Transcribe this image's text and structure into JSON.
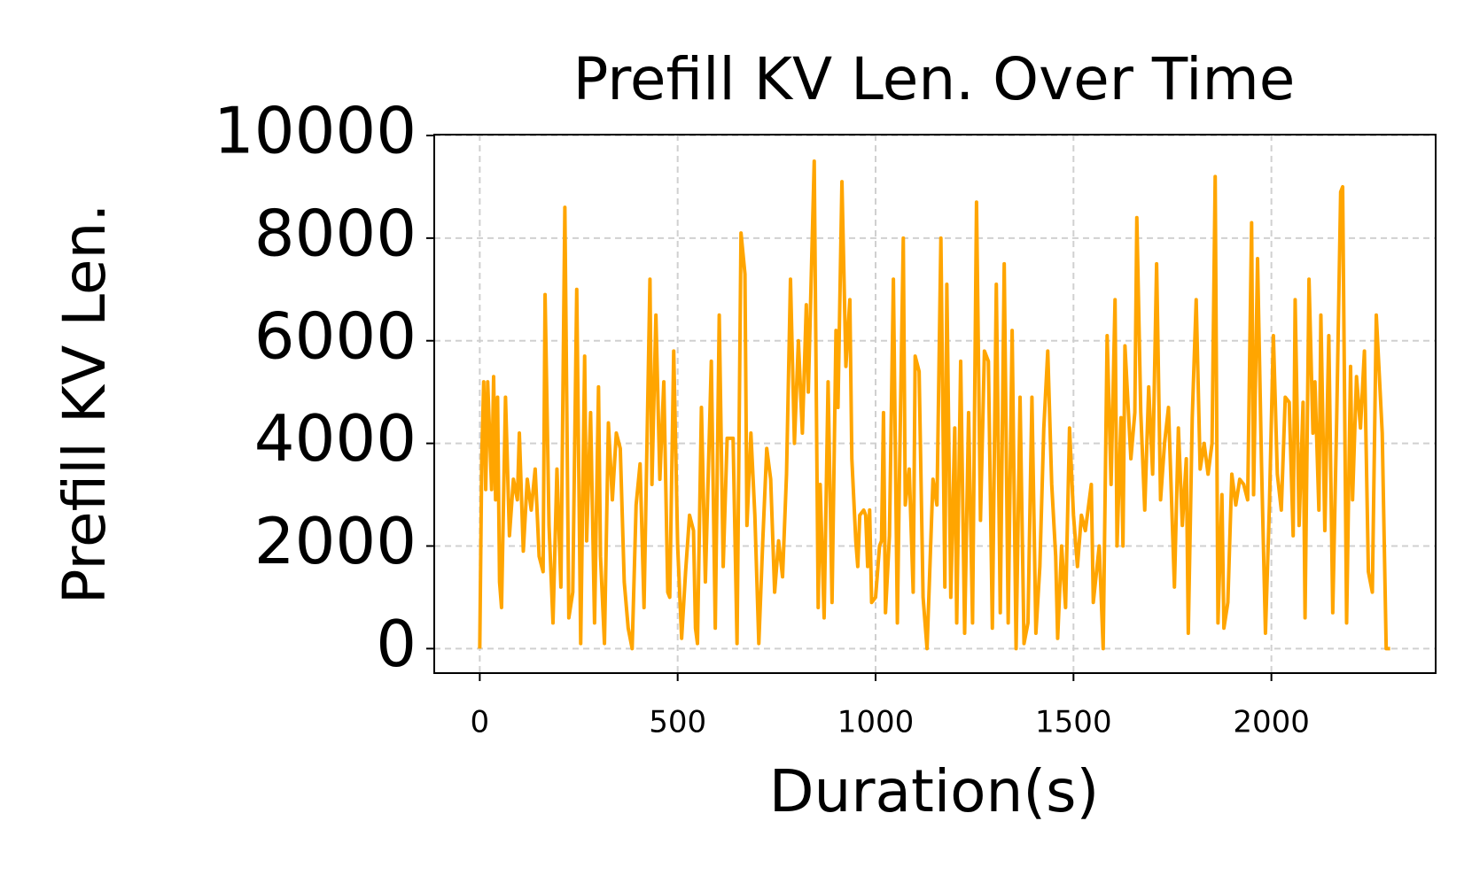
{
  "chart_data": {
    "type": "line",
    "title": "Prefill KV Len. Over Time",
    "x_label": "Duration(s)",
    "y_label": "Prefill KV Len.",
    "color": "#ffa500",
    "grid": true,
    "xlim": [
      -115,
      2415
    ],
    "ylim": [
      -477,
      10017
    ],
    "xticks": [
      0,
      500,
      1000,
      1500,
      2000
    ],
    "yticks": [
      0,
      2000,
      4000,
      6000,
      8000,
      10000
    ],
    "x": [
      0,
      5,
      10,
      15,
      20,
      30,
      35,
      40,
      45,
      50,
      55,
      65,
      75,
      85,
      95,
      100,
      110,
      120,
      130,
      140,
      150,
      160,
      165,
      175,
      185,
      195,
      205,
      215,
      225,
      235,
      245,
      255,
      265,
      270,
      280,
      290,
      300,
      305,
      315,
      325,
      335,
      345,
      355,
      365,
      375,
      385,
      395,
      405,
      415,
      430,
      435,
      445,
      455,
      465,
      475,
      480,
      490,
      500,
      510,
      520,
      530,
      540,
      545,
      550,
      560,
      570,
      585,
      595,
      605,
      615,
      625,
      640,
      650,
      660,
      670,
      675,
      685,
      695,
      705,
      715,
      725,
      735,
      745,
      755,
      765,
      775,
      785,
      795,
      805,
      815,
      825,
      830,
      845,
      855,
      860,
      870,
      880,
      890,
      900,
      905,
      915,
      925,
      935,
      940,
      950,
      955,
      960,
      970,
      975,
      980,
      985,
      990,
      1000,
      1010,
      1015,
      1020,
      1025,
      1035,
      1045,
      1055,
      1060,
      1070,
      1075,
      1085,
      1095,
      1100,
      1110,
      1120,
      1130,
      1145,
      1155,
      1165,
      1175,
      1180,
      1190,
      1200,
      1205,
      1215,
      1225,
      1235,
      1245,
      1255,
      1265,
      1275,
      1285,
      1295,
      1305,
      1315,
      1325,
      1335,
      1345,
      1355,
      1365,
      1375,
      1385,
      1395,
      1405,
      1415,
      1425,
      1435,
      1445,
      1455,
      1460,
      1470,
      1480,
      1490,
      1500,
      1510,
      1520,
      1530,
      1545,
      1550,
      1565,
      1575,
      1585,
      1595,
      1605,
      1610,
      1620,
      1625,
      1630,
      1645,
      1655,
      1660,
      1670,
      1680,
      1690,
      1700,
      1710,
      1720,
      1730,
      1740,
      1755,
      1765,
      1775,
      1785,
      1790,
      1800,
      1810,
      1820,
      1830,
      1840,
      1850,
      1858,
      1865,
      1875,
      1880,
      1890,
      1900,
      1910,
      1920,
      1930,
      1940,
      1950,
      1955,
      1965,
      1975,
      1985,
      1995,
      2005,
      2015,
      2025,
      2035,
      2045,
      2055,
      2060,
      2070,
      2080,
      2085,
      2095,
      2105,
      2110,
      2120,
      2125,
      2135,
      2145,
      2155,
      2165,
      2175,
      2180,
      2190,
      2200,
      2205,
      2215,
      2225,
      2235,
      2245,
      2255,
      2265,
      2280,
      2290,
      2300
    ],
    "values": [
      0,
      3700,
      5200,
      3100,
      5200,
      3100,
      5300,
      2900,
      4900,
      1300,
      800,
      4900,
      2200,
      3300,
      2900,
      4200,
      1900,
      3300,
      2700,
      3500,
      1800,
      1500,
      6900,
      2400,
      500,
      3500,
      1200,
      8600,
      600,
      1100,
      7000,
      100,
      5700,
      2100,
      4600,
      500,
      5100,
      1800,
      100,
      4400,
      2900,
      4200,
      3900,
      1300,
      400,
      0,
      2800,
      3600,
      800,
      7200,
      3200,
      6500,
      3300,
      5200,
      1100,
      1000,
      5800,
      2000,
      200,
      1500,
      2600,
      2300,
      400,
      100,
      4700,
      1300,
      5600,
      400,
      6500,
      1600,
      4100,
      4100,
      100,
      8100,
      7300,
      2400,
      4200,
      2600,
      100,
      2100,
      3900,
      3300,
      1100,
      2100,
      1400,
      3400,
      7200,
      4000,
      6000,
      4200,
      6700,
      5000,
      9500,
      800,
      3200,
      600,
      5200,
      900,
      6200,
      4700,
      9100,
      5500,
      6800,
      3700,
      2100,
      1600,
      2600,
      2700,
      2600,
      1600,
      2700,
      900,
      1000,
      2000,
      2100,
      4600,
      700,
      2200,
      7200,
      500,
      3200,
      8000,
      2800,
      3500,
      1100,
      5700,
      5400,
      1000,
      0,
      3300,
      2800,
      8000,
      1200,
      7100,
      1000,
      4300,
      500,
      5600,
      300,
      4600,
      500,
      8700,
      2500,
      5800,
      5600,
      400,
      7100,
      700,
      7500,
      500,
      6200,
      0,
      4900,
      100,
      500,
      4900,
      300,
      1600,
      4300,
      5800,
      3200,
      1800,
      200,
      2000,
      800,
      4300,
      2600,
      1600,
      2600,
      2300,
      3200,
      900,
      2000,
      0,
      6100,
      3200,
      6800,
      2000,
      4500,
      2000,
      5900,
      3700,
      4600,
      8400,
      4600,
      2700,
      5100,
      3400,
      7500,
      2900,
      4000,
      4700,
      1200,
      4300,
      2400,
      3700,
      300,
      4500,
      6800,
      3500,
      4000,
      3400,
      4000,
      9200,
      500,
      3000,
      400,
      900,
      3400,
      2800,
      3300,
      3200,
      2900,
      8300,
      3000,
      7600,
      3600,
      300,
      2800,
      6100,
      3400,
      2700,
      4900,
      4800,
      2200,
      6800,
      2400,
      4800,
      600,
      7200,
      4200,
      5200,
      2700,
      6500,
      2300,
      6100,
      700,
      4500,
      8900,
      9000,
      500,
      5500,
      2900,
      5300,
      4300,
      5800,
      1500,
      1100,
      6500,
      4200,
      0,
      0
    ]
  }
}
